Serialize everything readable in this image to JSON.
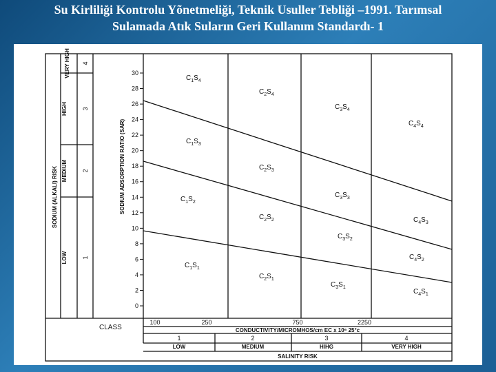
{
  "title": {
    "line1": "Su Kirliliği Kontrolu Yõnetmeliği, Teknik Usuller Tebliği –1991. Tarımsal",
    "line2": "Sulamada Atık Suların Geri Kullanım Standardı- 1"
  },
  "diagram": {
    "y_axis_left_label": "SODIUM (ALKALI) RISK",
    "y_axis_label": "SODIUM ADSORPTION RATIO (SAR)",
    "y_ticks": [
      "0",
      "2",
      "4",
      "6",
      "8",
      "10",
      "12",
      "14",
      "16",
      "18",
      "20",
      "22",
      "24",
      "26",
      "28",
      "30"
    ],
    "sodium_classes": [
      {
        "name": "VERY HIGH",
        "number": "4"
      },
      {
        "name": "HIGH",
        "number": "3"
      },
      {
        "name": "MEDIUM",
        "number": "2"
      },
      {
        "name": "LOW",
        "number": "1"
      }
    ],
    "x_ticks": [
      "100",
      "250",
      "750",
      "2250"
    ],
    "x_axis_label": "CONDUCTIVITY/MICROMHOS/cm EC x 10⁶ 25°c",
    "class_label": "CLASS",
    "salinity_classes": [
      {
        "number": "1",
        "name": "LOW"
      },
      {
        "number": "2",
        "name": "MEDIUM"
      },
      {
        "number": "3",
        "name": "HIHG"
      },
      {
        "number": "4",
        "name": "VERY HIGH"
      }
    ],
    "salinity_risk_label": "SALINITY RISK",
    "zones": [
      {
        "c": "C",
        "cn": "1",
        "s": "S",
        "sn": "4"
      },
      {
        "c": "C",
        "cn": "2",
        "s": "S",
        "sn": "4"
      },
      {
        "c": "C",
        "cn": "3",
        "s": "S",
        "sn": "4"
      },
      {
        "c": "C",
        "cn": "4",
        "s": "S",
        "sn": "4"
      },
      {
        "c": "C",
        "cn": "1",
        "s": "S",
        "sn": "3"
      },
      {
        "c": "C",
        "cn": "2",
        "s": "S",
        "sn": "3"
      },
      {
        "c": "C",
        "cn": "3",
        "s": "S",
        "sn": "3"
      },
      {
        "c": "C",
        "cn": "4",
        "s": "S",
        "sn": "3"
      },
      {
        "c": "C",
        "cn": "1",
        "s": "S",
        "sn": "2"
      },
      {
        "c": "C",
        "cn": "2",
        "s": "S",
        "sn": "2"
      },
      {
        "c": "C",
        "cn": "3",
        "s": "S",
        "sn": "2"
      },
      {
        "c": "C",
        "cn": "4",
        "s": "S",
        "sn": "2"
      },
      {
        "c": "C",
        "cn": "1",
        "s": "S",
        "sn": "1"
      },
      {
        "c": "C",
        "cn": "2",
        "s": "S",
        "sn": "1"
      },
      {
        "c": "C",
        "cn": "3",
        "s": "S",
        "sn": "1"
      },
      {
        "c": "C",
        "cn": "4",
        "s": "S",
        "sn": "1"
      }
    ]
  }
}
